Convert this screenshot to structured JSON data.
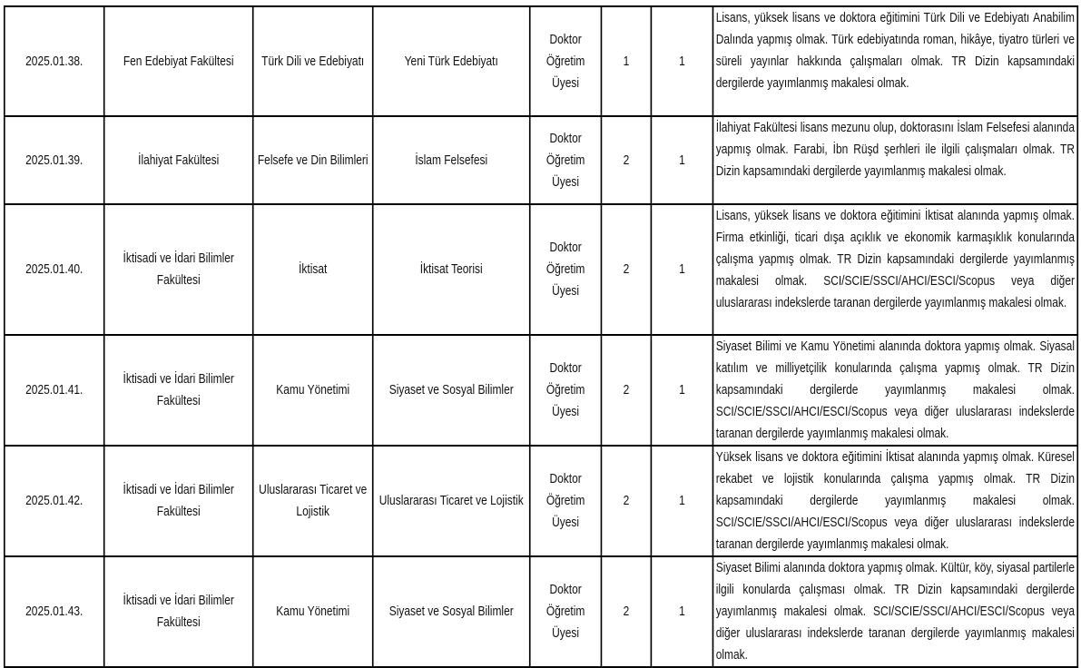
{
  "rows": [
    {
      "code": "2025.01.38.",
      "faculty": "Fen Edebiyat Fakültesi",
      "department": "Türk Dili ve Edebiyatı",
      "program": "Yeni Türk Edebiyatı",
      "title": "Doktor Öğretim Üyesi",
      "degree": "1",
      "count": "1",
      "requirements": "Lisans, yüksek lisans ve doktora eğitimini Türk Dili ve Edebiyatı Anabilim Dalında yapmış olmak. Türk edebiyatında roman, hikâye, tiyatro türleri ve süreli yayınlar hakkında çalışmaları olmak. TR Dizin kapsamındaki dergilerde yayımlanmış makalesi olmak."
    },
    {
      "code": "2025.01.39.",
      "faculty": "İlahiyat Fakültesi",
      "department": "Felsefe ve Din Bilimleri",
      "program": "İslam Felsefesi",
      "title": "Doktor Öğretim Üyesi",
      "degree": "2",
      "count": "1",
      "requirements": "İlahiyat Fakültesi lisans mezunu olup, doktorasını İslam Felsefesi alanında yapmış olmak. Farabi, İbn Rüşd şerhleri ile ilgili çalışmaları olmak.  TR Dizin kapsamındaki dergilerde yayımlanmış makalesi olmak."
    },
    {
      "code": "2025.01.40.",
      "faculty": "İktisadi ve İdari Bilimler Fakültesi",
      "department": "İktisat",
      "program": "İktisat Teorisi",
      "title": "Doktor Öğretim Üyesi",
      "degree": "2",
      "count": "1",
      "requirements": "Lisans, yüksek lisans ve doktora eğitimini İktisat alanında yapmış olmak. Firma etkinliği, ticari dışa açıklık ve ekonomik karmaşıklık konularında çalışma yapmış olmak. TR Dizin kapsamındaki dergilerde yayımlanmış makalesi olmak. SCI/SCIE/SSCI/AHCI/ESCI/Scopus veya diğer uluslararası indekslerde taranan dergilerde yayımlanmış makalesi olmak."
    },
    {
      "code": "2025.01.41.",
      "faculty": "İktisadi ve İdari Bilimler Fakültesi",
      "department": "Kamu Yönetimi",
      "program": "Siyaset ve Sosyal Bilimler",
      "title": "Doktor Öğretim Üyesi",
      "degree": "2",
      "count": "1",
      "requirements": "Siyaset Bilimi ve Kamu Yönetimi alanında doktora yapmış olmak. Siyasal katılım ve milliyetçilik konularında çalışma yapmış olmak. TR Dizin kapsamındaki dergilerde yayımlanmış makalesi olmak. SCI/SCIE/SSCI/AHCI/ESCI/Scopus veya diğer uluslararası indekslerde taranan dergilerde yayımlanmış makalesi olmak."
    },
    {
      "code": "2025.01.42.",
      "faculty": "İktisadi ve İdari Bilimler Fakültesi",
      "department": "Uluslararası Ticaret ve Lojistik",
      "program": "Uluslararası Ticaret ve Lojistik",
      "title": "Doktor Öğretim Üyesi",
      "degree": "2",
      "count": "1",
      "requirements": "Yüksek lisans ve doktora eğitimini İktisat alanında yapmış olmak. Küresel rekabet ve lojistik konularında çalışma yapmış olmak. TR Dizin kapsamındaki dergilerde yayımlanmış makalesi olmak. SCI/SCIE/SSCI/AHCI/ESCI/Scopus veya diğer uluslararası indekslerde taranan dergilerde yayımlanmış makalesi olmak."
    },
    {
      "code": "2025.01.43.",
      "faculty": "İktisadi ve İdari Bilimler Fakültesi",
      "department": "Kamu Yönetimi",
      "program": "Siyaset ve Sosyal Bilimler",
      "title": "Doktor Öğretim Üyesi",
      "degree": "2",
      "count": "1",
      "requirements": "Siyaset Bilimi alanında doktora yapmış olmak. Kültür, köy, siyasal partilerle ilgili konularda çalışması olmak. TR Dizin kapsamındaki dergilerde yayımlanmış makalesi olmak. SCI/SCIE/SSCI/AHCI/ESCI/Scopus veya diğer uluslararası indekslerde taranan dergilerde yayımlanmış makalesi olmak."
    }
  ]
}
